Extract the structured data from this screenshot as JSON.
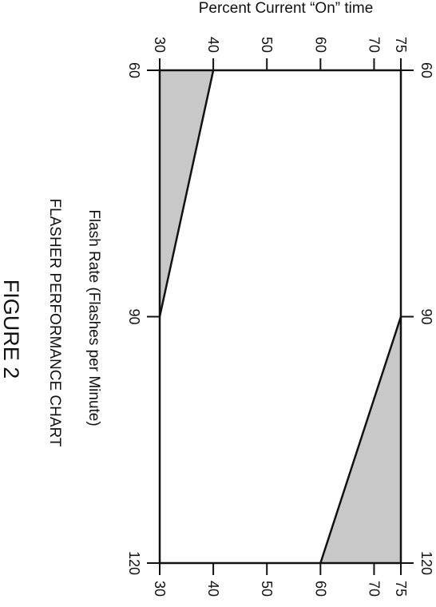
{
  "chart_data": {
    "type": "area",
    "title": "FLASHER PERFORMANCE CHART",
    "caption": "FIGURE 2",
    "xlabel": "Flash Rate (Flashes per Minute)",
    "ylabel": "Percent Current “On” time",
    "xlim": [
      60,
      120
    ],
    "ylim": [
      30,
      75
    ],
    "x_ticks": [
      "60",
      "90",
      "120"
    ],
    "y_ticks": [
      "30",
      "40",
      "50",
      "60",
      "70",
      "75"
    ],
    "series": [
      {
        "x": [
          60,
          90
        ],
        "y": [
          40,
          30
        ]
      },
      {
        "x": [
          90,
          120
        ],
        "y": [
          75,
          60
        ]
      }
    ],
    "colors": {
      "shade": "#c8c8c8",
      "line": "#111111"
    },
    "grid": false,
    "orientation": "rotated 90 degrees clockwise"
  }
}
